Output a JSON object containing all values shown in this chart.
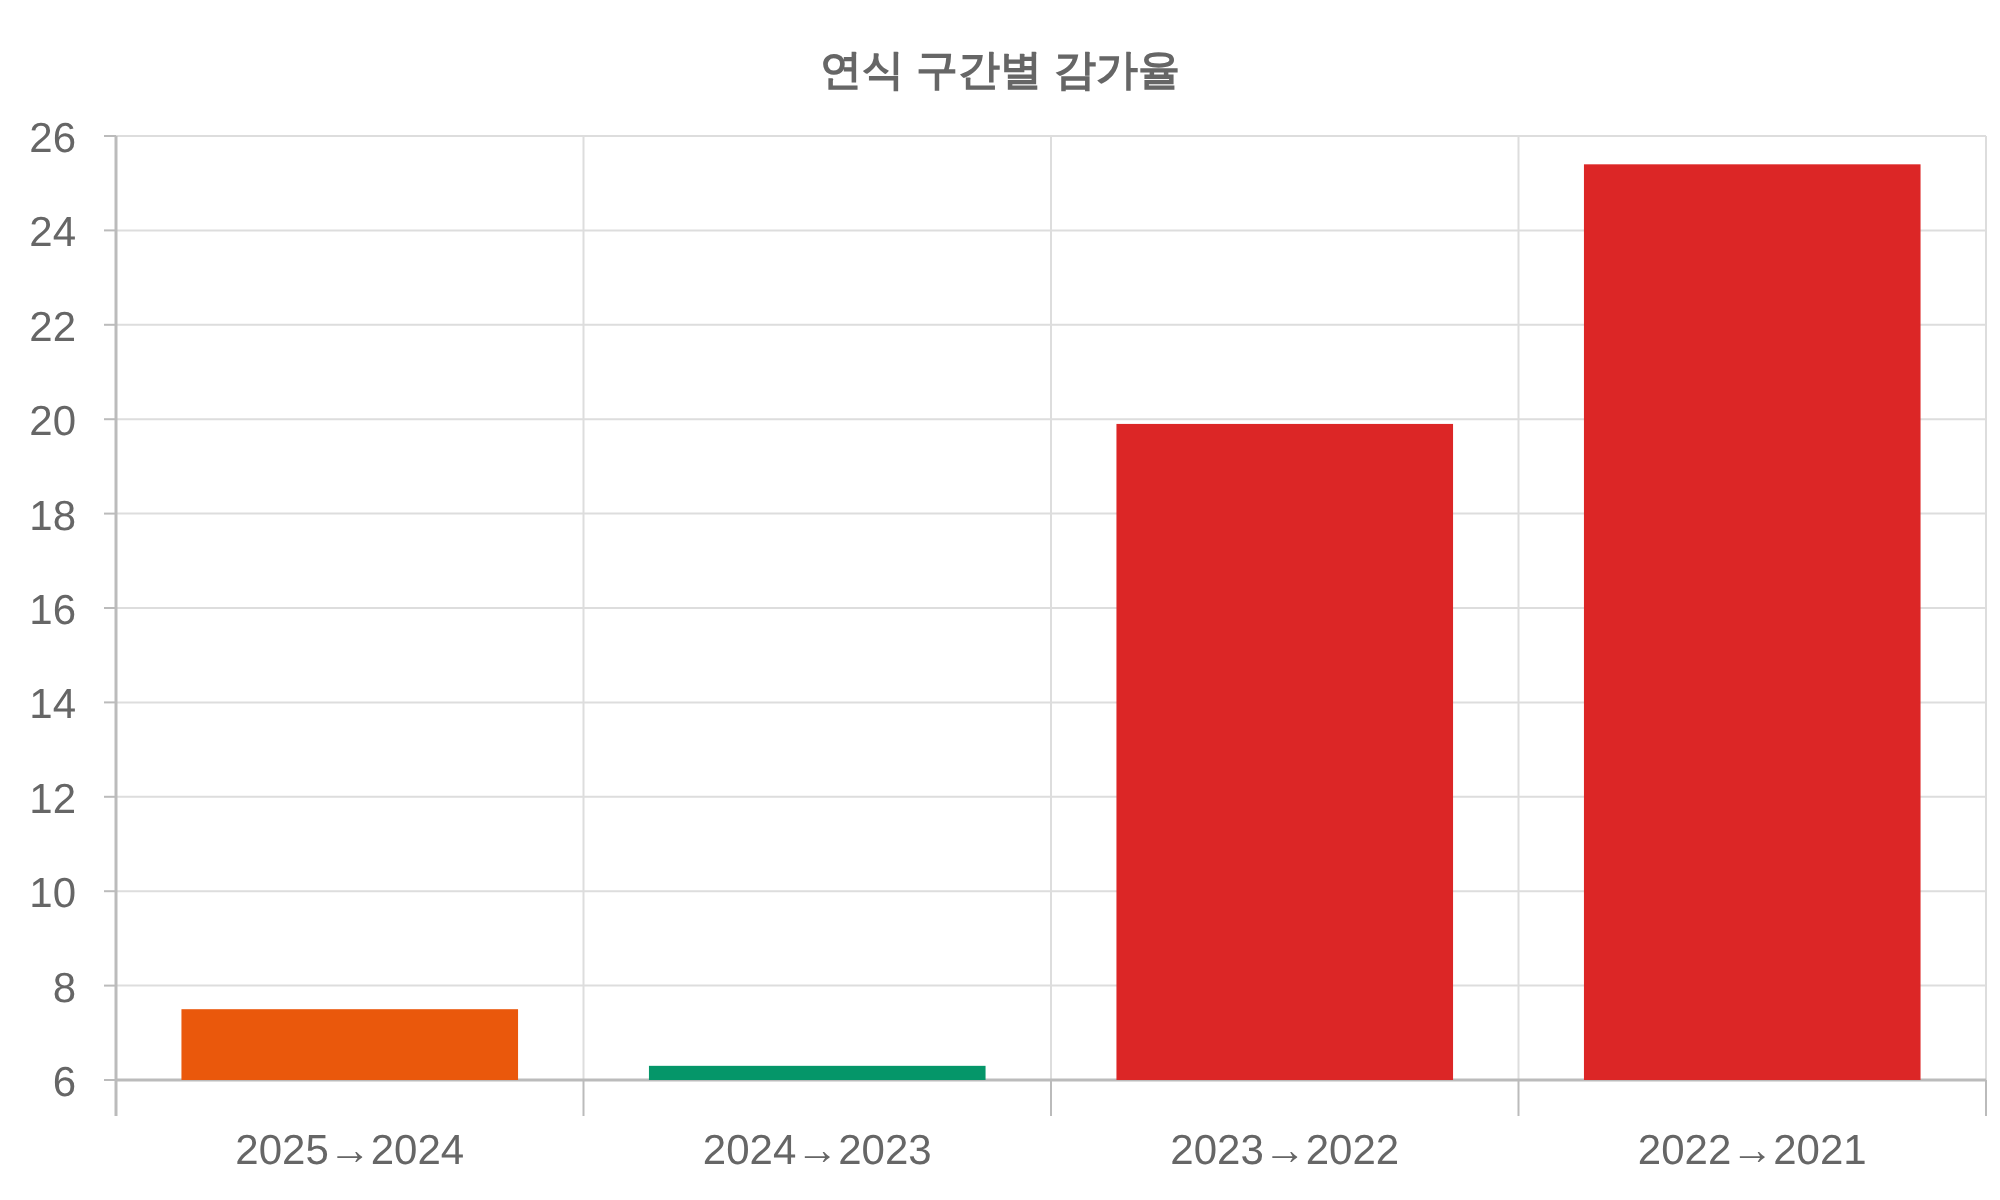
{
  "chart_data": {
    "type": "bar",
    "title": "연식 구간별 감가율",
    "categories": [
      "2025→2024",
      "2024→2023",
      "2023→2022",
      "2022→2021"
    ],
    "values": [
      7.5,
      6.3,
      19.9,
      25.4
    ],
    "colors": [
      "#ea580c",
      "#059669",
      "#dc2626",
      "#dc2626"
    ],
    "ylim": [
      6,
      26
    ],
    "yticks": [
      6,
      8,
      10,
      12,
      14,
      16,
      18,
      20,
      22,
      24,
      26
    ],
    "grid": true
  }
}
